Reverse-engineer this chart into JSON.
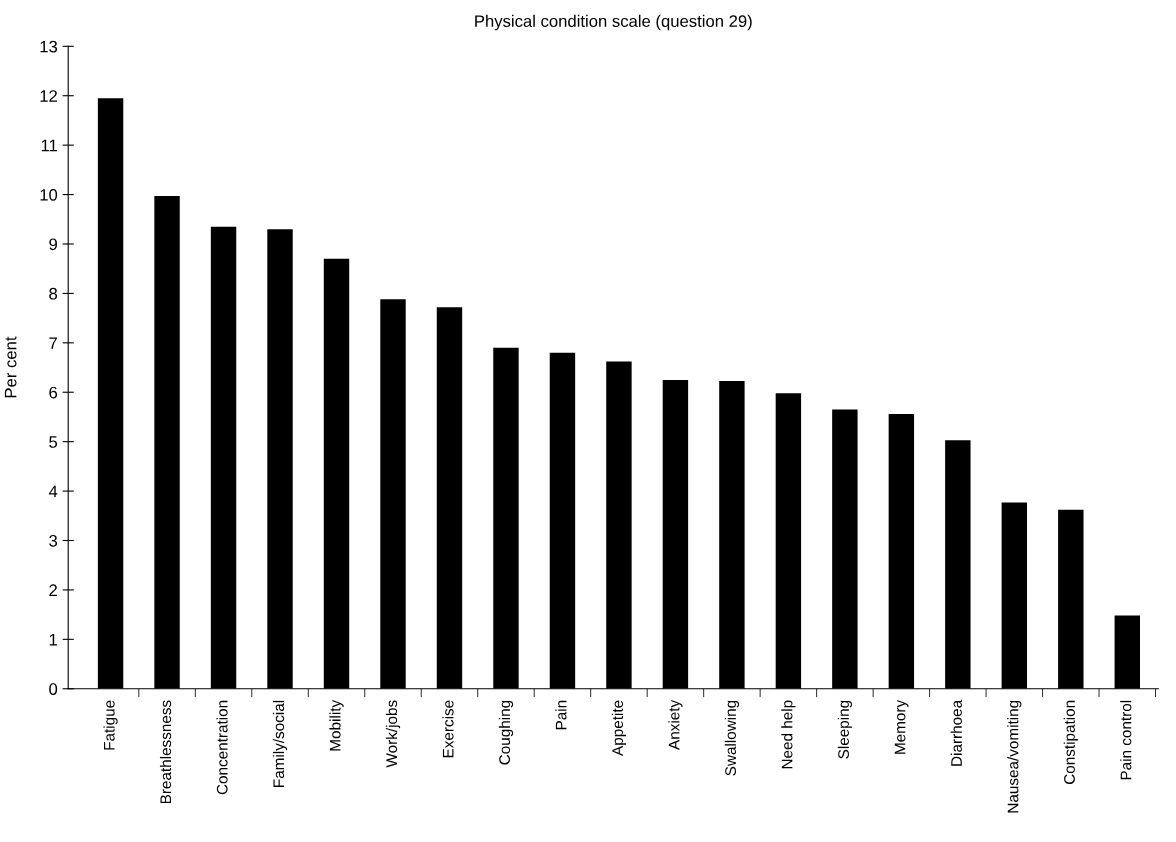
{
  "chart_data": {
    "type": "bar",
    "title": "Physical condition scale (question 29)",
    "ylabel": "Per cent",
    "categories": [
      "Fatigue",
      "Breathlessness",
      "Concentration",
      "Family/social",
      "Mobility",
      "Work/jobs",
      "Exercise",
      "Coughing",
      "Pain",
      "Appetite",
      "Anxiety",
      "Swallowing",
      "Need help",
      "Sleeping",
      "Memory",
      "Diarrhoea",
      "Nausea/vomiting",
      "Constipation",
      "Pain control"
    ],
    "values": [
      11.95,
      9.97,
      9.35,
      9.3,
      8.7,
      7.88,
      7.72,
      6.9,
      6.8,
      6.62,
      6.25,
      6.23,
      5.98,
      5.65,
      5.56,
      5.03,
      3.77,
      3.62,
      1.48
    ],
    "color": "#000000",
    "ylim": [
      0,
      13
    ],
    "yticks": [
      0,
      1,
      2,
      3,
      4,
      5,
      6,
      7,
      8,
      9,
      10,
      11,
      12,
      13
    ],
    "grid": false,
    "legend": false
  }
}
